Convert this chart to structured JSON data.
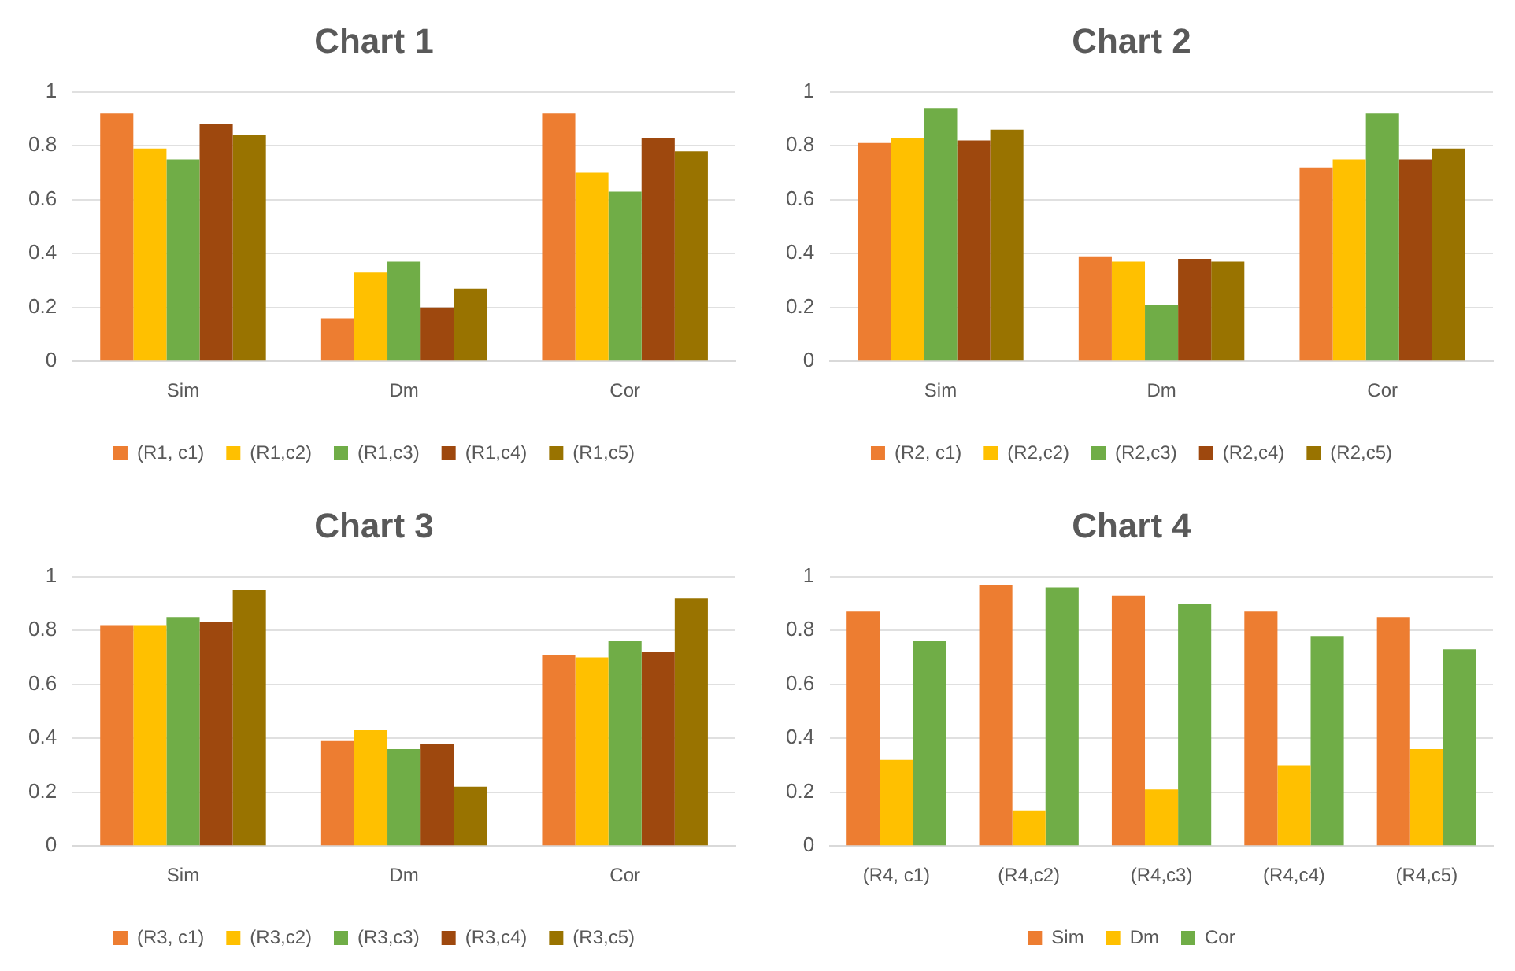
{
  "chart_data": [
    {
      "type": "bar",
      "title": "Chart 1",
      "categories": [
        "Sim",
        "Dm",
        "Cor"
      ],
      "series": [
        {
          "name": "(R1, c1)",
          "color": "#ed7d31",
          "values": [
            0.92,
            0.16,
            0.92
          ]
        },
        {
          "name": "(R1,c2)",
          "color": "#ffc000",
          "values": [
            0.79,
            0.33,
            0.7
          ]
        },
        {
          "name": "(R1,c3)",
          "color": "#70ad47",
          "values": [
            0.75,
            0.37,
            0.63
          ]
        },
        {
          "name": "(R1,c4)",
          "color": "#9e480e",
          "values": [
            0.88,
            0.2,
            0.83
          ]
        },
        {
          "name": "(R1,c5)",
          "color": "#997300",
          "values": [
            0.84,
            0.27,
            0.78
          ]
        }
      ],
      "ylim": [
        0,
        1
      ],
      "yticks": [
        0,
        0.2,
        0.4,
        0.6,
        0.8,
        1
      ],
      "grid": "y",
      "legend": "bottom"
    },
    {
      "type": "bar",
      "title": "Chart 2",
      "categories": [
        "Sim",
        "Dm",
        "Cor"
      ],
      "series": [
        {
          "name": "(R2, c1)",
          "color": "#ed7d31",
          "values": [
            0.81,
            0.39,
            0.72
          ]
        },
        {
          "name": "(R2,c2)",
          "color": "#ffc000",
          "values": [
            0.83,
            0.37,
            0.75
          ]
        },
        {
          "name": "(R2,c3)",
          "color": "#70ad47",
          "values": [
            0.94,
            0.21,
            0.92
          ]
        },
        {
          "name": "(R2,c4)",
          "color": "#9e480e",
          "values": [
            0.82,
            0.38,
            0.75
          ]
        },
        {
          "name": "(R2,c5)",
          "color": "#997300",
          "values": [
            0.86,
            0.37,
            0.79
          ]
        }
      ],
      "ylim": [
        0,
        1
      ],
      "yticks": [
        0,
        0.2,
        0.4,
        0.6,
        0.8,
        1
      ],
      "grid": "y",
      "legend": "bottom"
    },
    {
      "type": "bar",
      "title": "Chart 3",
      "categories": [
        "Sim",
        "Dm",
        "Cor"
      ],
      "series": [
        {
          "name": "(R3, c1)",
          "color": "#ed7d31",
          "values": [
            0.82,
            0.39,
            0.71
          ]
        },
        {
          "name": "(R3,c2)",
          "color": "#ffc000",
          "values": [
            0.82,
            0.43,
            0.7
          ]
        },
        {
          "name": "(R3,c3)",
          "color": "#70ad47",
          "values": [
            0.85,
            0.36,
            0.76
          ]
        },
        {
          "name": "(R3,c4)",
          "color": "#9e480e",
          "values": [
            0.83,
            0.38,
            0.72
          ]
        },
        {
          "name": "(R3,c5)",
          "color": "#997300",
          "values": [
            0.95,
            0.22,
            0.92
          ]
        }
      ],
      "ylim": [
        0,
        1
      ],
      "yticks": [
        0,
        0.2,
        0.4,
        0.6,
        0.8,
        1
      ],
      "grid": "y",
      "legend": "bottom"
    },
    {
      "type": "bar",
      "title": "Chart 4",
      "categories": [
        "(R4, c1)",
        "(R4,c2)",
        "(R4,c3)",
        "(R4,c4)",
        "(R4,c5)"
      ],
      "series": [
        {
          "name": "Sim",
          "color": "#ed7d31",
          "values": [
            0.87,
            0.97,
            0.93,
            0.87,
            0.85
          ]
        },
        {
          "name": "Dm",
          "color": "#ffc000",
          "values": [
            0.32,
            0.13,
            0.21,
            0.3,
            0.36
          ]
        },
        {
          "name": "Cor",
          "color": "#70ad47",
          "values": [
            0.76,
            0.96,
            0.9,
            0.78,
            0.73
          ]
        }
      ],
      "ylim": [
        0,
        1
      ],
      "yticks": [
        0,
        0.2,
        0.4,
        0.6,
        0.8,
        1
      ],
      "grid": "y",
      "legend": "bottom"
    }
  ]
}
